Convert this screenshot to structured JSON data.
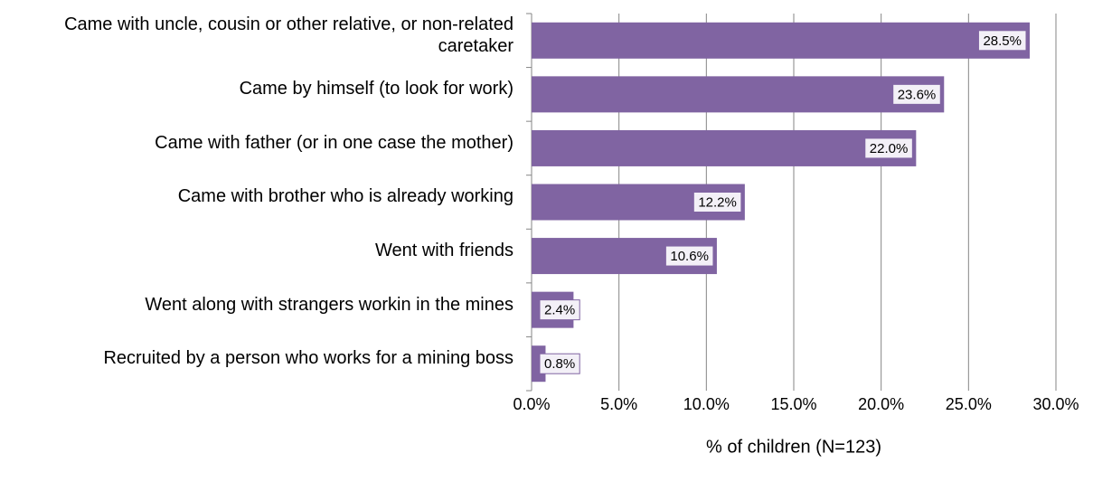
{
  "chart_data": {
    "type": "bar",
    "orientation": "horizontal",
    "categories": [
      "Came with uncle, cousin or other relative, or non-related caretaker",
      "Came by himself (to look for work)",
      "Came with father (or in one case the mother)",
      "Came with brother who is already working",
      "Went with friends",
      "Went along with strangers workin in the mines",
      "Recruited by a person who works for a mining boss"
    ],
    "values": [
      28.5,
      23.6,
      22.0,
      12.2,
      10.6,
      2.4,
      0.8
    ],
    "value_labels": [
      "28.5%",
      "23.6%",
      "22.0%",
      "12.2%",
      "10.6%",
      "2.4%",
      "0.8%"
    ],
    "color": "#8064a2",
    "xlabel": "% of children (N=123)",
    "xlim": [
      0,
      30
    ],
    "xticks": [
      {
        "value": 0,
        "label": "0.0%"
      },
      {
        "value": 5,
        "label": "5.0%"
      },
      {
        "value": 10,
        "label": "10.0%"
      },
      {
        "value": 15,
        "label": "15.0%"
      },
      {
        "value": 20,
        "label": "20.0%"
      },
      {
        "value": 25,
        "label": "25.0%"
      },
      {
        "value": 30,
        "label": "30.0%"
      }
    ],
    "grid": true
  }
}
